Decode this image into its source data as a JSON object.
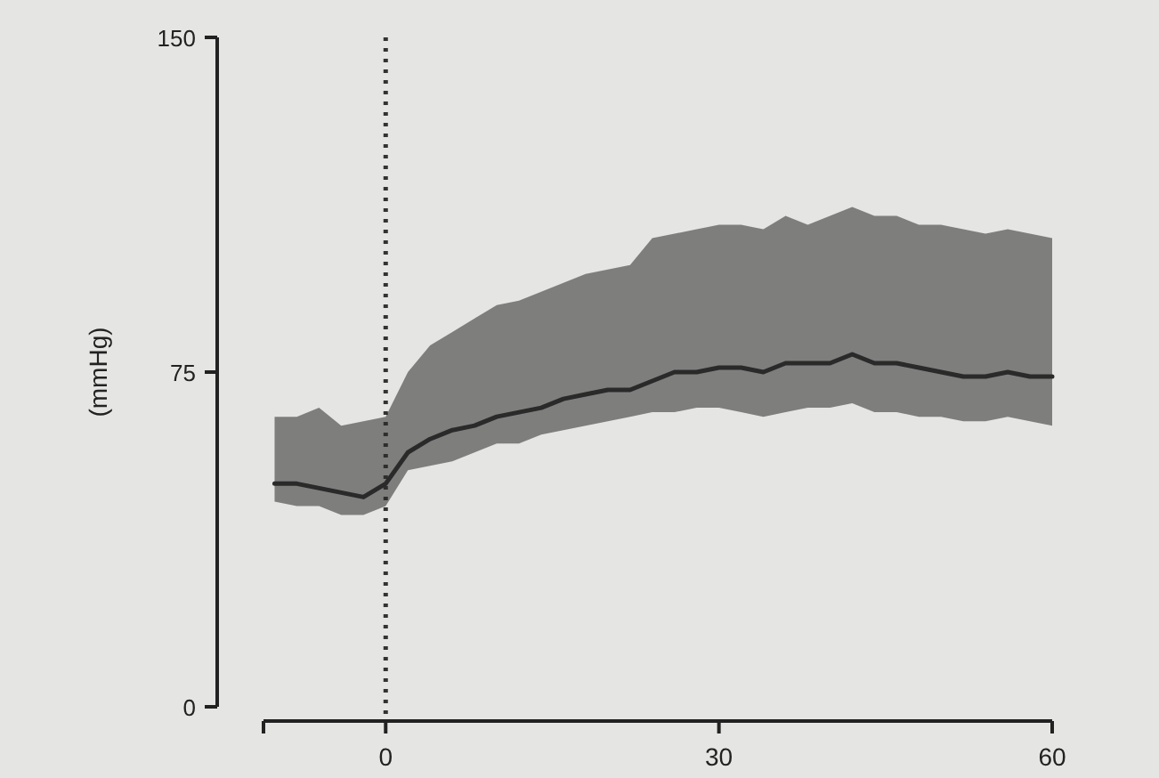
{
  "chart_data": {
    "type": "line",
    "ylabel": "(mmHg)",
    "xlim": [
      -11,
      60
    ],
    "xticks": [
      {
        "value": -11,
        "label": null
      },
      0,
      30,
      60
    ],
    "ylim": [
      0,
      150
    ],
    "yticks": [
      0,
      75,
      150
    ],
    "x": [
      -10,
      -8,
      -6,
      -4,
      -2,
      0,
      2,
      4,
      6,
      8,
      10,
      12,
      14,
      16,
      18,
      20,
      22,
      24,
      26,
      28,
      30,
      32,
      34,
      36,
      38,
      40,
      42,
      44,
      46,
      48,
      50,
      52,
      54,
      56,
      58,
      60
    ],
    "series": [
      {
        "color": "#2a2a2a",
        "values": [
          50,
          50,
          49,
          48,
          47,
          50,
          57,
          60,
          62,
          63,
          65,
          66,
          67,
          69,
          70,
          71,
          71,
          73,
          75,
          75,
          76,
          76,
          75,
          77,
          77,
          77,
          79,
          77,
          77,
          76,
          75,
          74,
          74,
          75,
          74,
          74
        ],
        "lower": [
          46,
          45,
          45,
          43,
          43,
          45,
          53,
          54,
          55,
          57,
          59,
          59,
          61,
          62,
          63,
          64,
          65,
          66,
          66,
          67,
          67,
          66,
          65,
          66,
          67,
          67,
          68,
          66,
          66,
          65,
          65,
          64,
          64,
          65,
          64,
          63
        ],
        "upper": [
          65,
          65,
          67,
          63,
          64,
          65,
          75,
          81,
          84,
          87,
          90,
          91,
          93,
          95,
          97,
          98,
          99,
          105,
          106,
          107,
          108,
          108,
          107,
          110,
          108,
          110,
          112,
          110,
          110,
          108,
          108,
          107,
          106,
          107,
          106,
          105
        ]
      }
    ],
    "ref_lines": [
      {
        "axis": "x",
        "value": 0,
        "line_style": "dotted",
        "color": "#333333"
      }
    ],
    "grid": false,
    "marker": "none",
    "line_style": "solid"
  }
}
